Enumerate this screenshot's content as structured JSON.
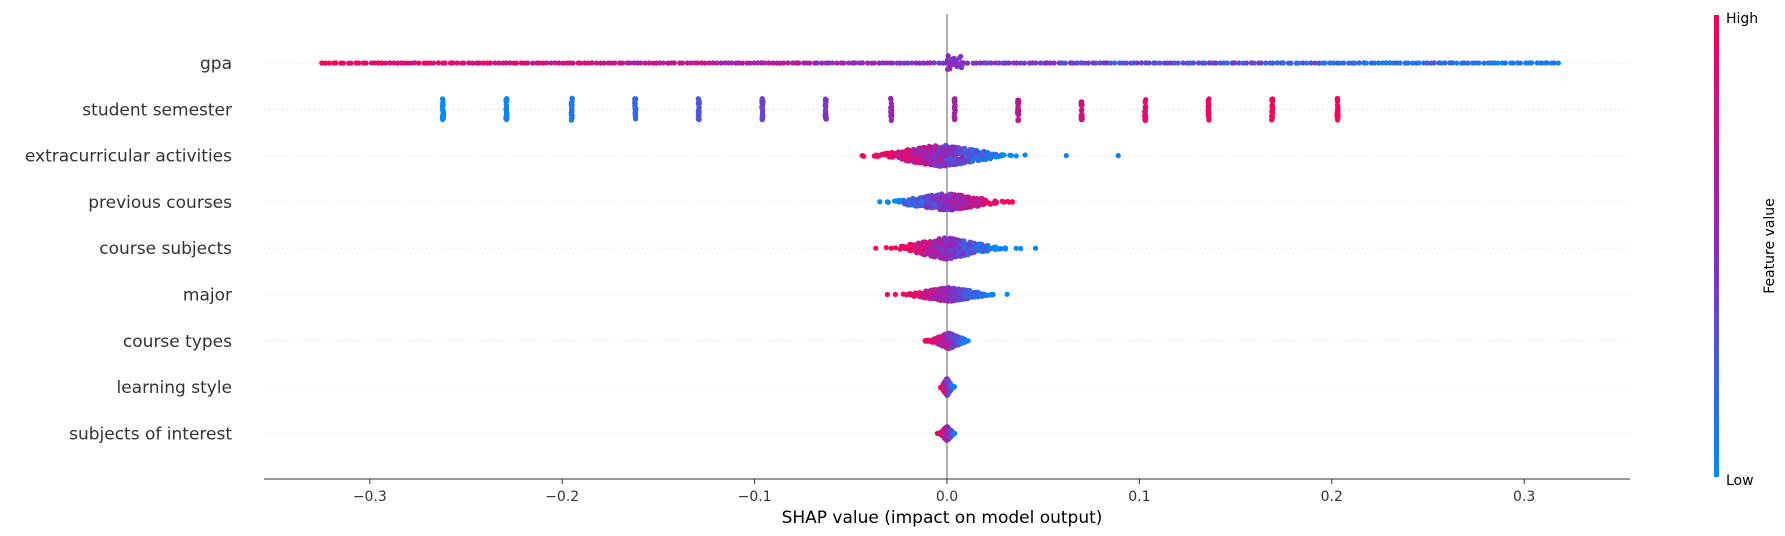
{
  "chart_data": {
    "type": "scatter",
    "subtype": "shap-beeswarm",
    "title": "",
    "xlabel": "SHAP value (impact on model output)",
    "ylabel": "",
    "xlim": [
      -0.355,
      0.355
    ],
    "xticks": [
      -0.3,
      -0.2,
      -0.1,
      0.0,
      0.1,
      0.2,
      0.3
    ],
    "xtick_labels": [
      "−0.3",
      "−0.2",
      "−0.1",
      "0.0",
      "0.1",
      "0.2",
      "0.3"
    ],
    "grid": "horizontal-dotted",
    "colors": {
      "low": "#008bfb",
      "mid": "#8a2bc0",
      "high": "#ff0052"
    },
    "colorbar": {
      "label": "Feature value",
      "high_label": "High",
      "low_label": "Low",
      "placement": "right"
    },
    "features": [
      {
        "name": "gpa",
        "kind": "uniform",
        "range": [
          -0.325,
          0.318
        ],
        "count": 330,
        "spread": 0.04,
        "color_trend": "high-left",
        "center_cluster": {
          "x": 0.004,
          "width": 0.008,
          "count": 20,
          "spread": 0.45
        }
      },
      {
        "name": "student semester",
        "kind": "discrete",
        "levels": [
          {
            "x": -0.262,
            "c": 0.0
          },
          {
            "x": -0.229,
            "c": 0.05
          },
          {
            "x": -0.195,
            "c": 0.1
          },
          {
            "x": -0.162,
            "c": 0.2
          },
          {
            "x": -0.129,
            "c": 0.28
          },
          {
            "x": -0.096,
            "c": 0.38
          },
          {
            "x": -0.063,
            "c": 0.45
          },
          {
            "x": -0.029,
            "c": 0.55
          },
          {
            "x": 0.004,
            "c": 0.62
          },
          {
            "x": 0.037,
            "c": 0.72
          },
          {
            "x": 0.07,
            "c": 0.82
          },
          {
            "x": 0.103,
            "c": 0.88
          },
          {
            "x": 0.136,
            "c": 0.93
          },
          {
            "x": 0.169,
            "c": 0.97
          },
          {
            "x": 0.203,
            "c": 1.0
          }
        ],
        "spread": 0.7
      },
      {
        "name": "extracurricular activities",
        "kind": "cluster",
        "center": -0.003,
        "sd": 0.014,
        "count": 480,
        "spread": 0.7,
        "color_trend": "high-left",
        "outliers": [
          {
            "x": -0.044,
            "c": 0.95
          },
          {
            "x": 0.062,
            "c": 0.05
          },
          {
            "x": 0.089,
            "c": 0.05
          }
        ]
      },
      {
        "name": "previous courses",
        "kind": "cluster",
        "center": 0.0,
        "sd": 0.012,
        "count": 460,
        "spread": 0.55,
        "color_trend": "high-right",
        "outliers": [
          {
            "x": -0.031,
            "c": 0.05
          },
          {
            "x": 0.034,
            "c": 0.95
          }
        ]
      },
      {
        "name": "course subjects",
        "kind": "cluster",
        "center": 0.0,
        "sd": 0.011,
        "count": 460,
        "spread": 0.7,
        "color_trend": "high-left",
        "outliers": [
          {
            "x": -0.037,
            "c": 0.95
          },
          {
            "x": -0.029,
            "c": 0.95
          },
          {
            "x": 0.046,
            "c": 0.05
          }
        ]
      },
      {
        "name": "major",
        "kind": "cluster",
        "center": 0.001,
        "sd": 0.009,
        "count": 420,
        "spread": 0.45,
        "color_trend": "high-left",
        "outliers": [
          {
            "x": -0.031,
            "c": 0.95
          },
          {
            "x": 0.024,
            "c": 0.05
          }
        ]
      },
      {
        "name": "course types",
        "kind": "cluster",
        "center": 0.001,
        "sd": 0.004,
        "count": 360,
        "spread": 0.5,
        "color_trend": "high-left",
        "outliers": [
          {
            "x": -0.011,
            "c": 0.95
          },
          {
            "x": 0.011,
            "c": 0.05
          }
        ]
      },
      {
        "name": "learning style",
        "kind": "cluster",
        "center": 0.0,
        "sd": 0.0012,
        "count": 300,
        "spread": 0.55,
        "color_trend": "high-left",
        "outliers": []
      },
      {
        "name": "subjects of interest",
        "kind": "cluster",
        "center": 0.0,
        "sd": 0.0015,
        "count": 300,
        "spread": 0.45,
        "color_trend": "high-left",
        "outliers": [
          {
            "x": -0.005,
            "c": 0.95
          },
          {
            "x": 0.004,
            "c": 0.05
          }
        ]
      }
    ]
  }
}
